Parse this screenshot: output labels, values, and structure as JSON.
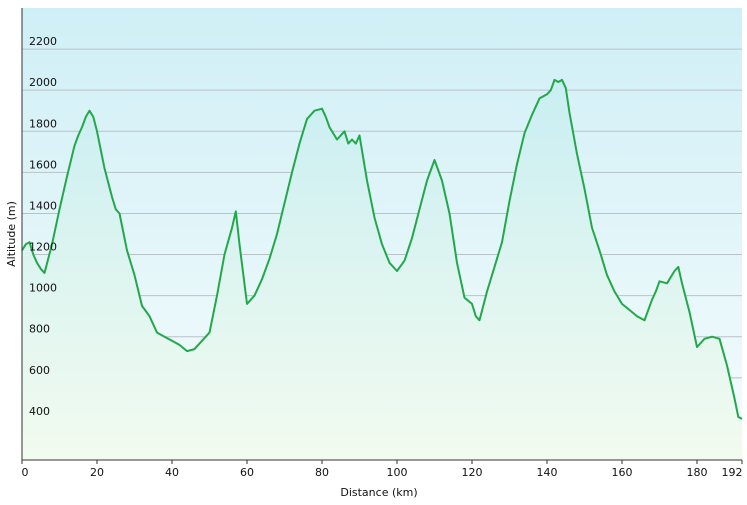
{
  "chart_data": {
    "type": "area",
    "title": "",
    "xlabel": "Distance  (km)",
    "ylabel": "Altitude (m)",
    "xlim": [
      0,
      192
    ],
    "ylim": [
      200,
      2400
    ],
    "x_ticks": [
      0,
      20,
      40,
      60,
      80,
      100,
      120,
      140,
      160,
      180,
      192
    ],
    "y_ticks": [
      400,
      600,
      800,
      1000,
      1200,
      1400,
      1600,
      1800,
      2000,
      2200
    ],
    "grid": true,
    "line_color": "#22a84a",
    "fill_top_color": "#c9eef2",
    "fill_bottom_color": "#f2fbef",
    "background_top_color": "#cfeff6",
    "background_bottom_color": "#f5fcfd",
    "series": [
      {
        "x": [
          0,
          1,
          2,
          3,
          4,
          5,
          6,
          8,
          10,
          12,
          14,
          15,
          16,
          17,
          18,
          19,
          20,
          22,
          24,
          25,
          26,
          28,
          30,
          32,
          34,
          36,
          38,
          40,
          42,
          44,
          46,
          48,
          50,
          52,
          54,
          56,
          57,
          58,
          60,
          62,
          64,
          66,
          68,
          70,
          72,
          74,
          76,
          78,
          80,
          81,
          82,
          84,
          86,
          87,
          88,
          89,
          90,
          92,
          94,
          96,
          98,
          100,
          102,
          104,
          106,
          108,
          110,
          112,
          114,
          116,
          118,
          120,
          121,
          122,
          124,
          126,
          128,
          130,
          132,
          134,
          136,
          138,
          140,
          141,
          142,
          143,
          144,
          145,
          146,
          148,
          150,
          152,
          154,
          156,
          158,
          160,
          162,
          164,
          166,
          168,
          169,
          170,
          172,
          174,
          175,
          176,
          178,
          180,
          182,
          184,
          186,
          188,
          190,
          191,
          192
        ],
        "y": [
          1220,
          1250,
          1260,
          1200,
          1160,
          1130,
          1110,
          1250,
          1420,
          1580,
          1730,
          1780,
          1820,
          1870,
          1900,
          1870,
          1800,
          1620,
          1480,
          1420,
          1400,
          1220,
          1100,
          950,
          900,
          820,
          800,
          780,
          760,
          730,
          740,
          780,
          820,
          1000,
          1200,
          1330,
          1410,
          1250,
          960,
          1000,
          1080,
          1180,
          1300,
          1450,
          1600,
          1740,
          1860,
          1900,
          1910,
          1870,
          1820,
          1760,
          1800,
          1740,
          1760,
          1740,
          1780,
          1560,
          1380,
          1250,
          1160,
          1120,
          1170,
          1280,
          1420,
          1560,
          1660,
          1560,
          1400,
          1160,
          990,
          960,
          900,
          880,
          1020,
          1140,
          1260,
          1460,
          1640,
          1790,
          1880,
          1960,
          1980,
          2000,
          2050,
          2040,
          2050,
          2010,
          1890,
          1690,
          1520,
          1330,
          1220,
          1100,
          1020,
          960,
          930,
          900,
          880,
          980,
          1020,
          1070,
          1060,
          1120,
          1140,
          1060,
          920,
          750,
          790,
          800,
          790,
          660,
          500,
          410,
          400
        ]
      }
    ]
  }
}
